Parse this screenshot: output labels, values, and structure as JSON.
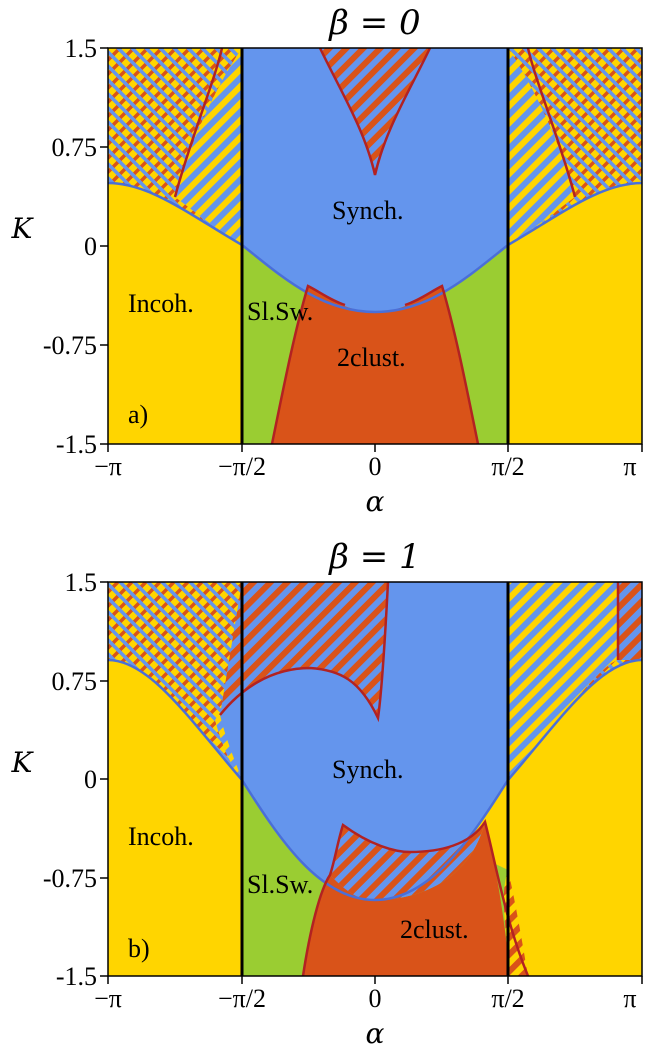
{
  "colors": {
    "incoherent": "#ffd500",
    "synch": "#6495ed",
    "slow_switching": "#9acd32",
    "two_cluster": "#d95319",
    "boundary_red": "#b22222",
    "boundary_blue": "#4a6fd8",
    "vline": "#000000"
  },
  "chart_data": [
    {
      "type": "region-map",
      "panel": "a)",
      "title": "β = 0",
      "xlabel": "α",
      "ylabel": "K",
      "xlim": [
        -3.1416,
        3.1416
      ],
      "ylim": [
        -1.5,
        1.5
      ],
      "x_ticks": [
        "−π",
        "−π/2",
        "0",
        "π/2",
        "π"
      ],
      "y_ticks": [
        "1.5",
        "0.75",
        "0",
        "-0.75",
        "-1.5"
      ],
      "vertical_lines_at": [
        -1.5708,
        1.5708
      ],
      "labels": {
        "incoh": "Incoh.",
        "slsw": "Sl.Sw.",
        "synch": "Synch.",
        "clust": "2clust."
      }
    },
    {
      "type": "region-map",
      "panel": "b)",
      "title": "β = 1",
      "xlabel": "α",
      "ylabel": "K",
      "xlim": [
        -3.1416,
        3.1416
      ],
      "ylim": [
        -1.5,
        1.5
      ],
      "x_ticks": [
        "−π",
        "−π/2",
        "0",
        "π/2",
        "π"
      ],
      "y_ticks": [
        "1.5",
        "0.75",
        "0",
        "-0.75",
        "-1.5"
      ],
      "vertical_lines_at": [
        -1.5708,
        1.5708
      ],
      "labels": {
        "incoh": "Incoh.",
        "slsw": "Sl.Sw.",
        "synch": "Synch.",
        "clust": "2clust."
      }
    }
  ]
}
